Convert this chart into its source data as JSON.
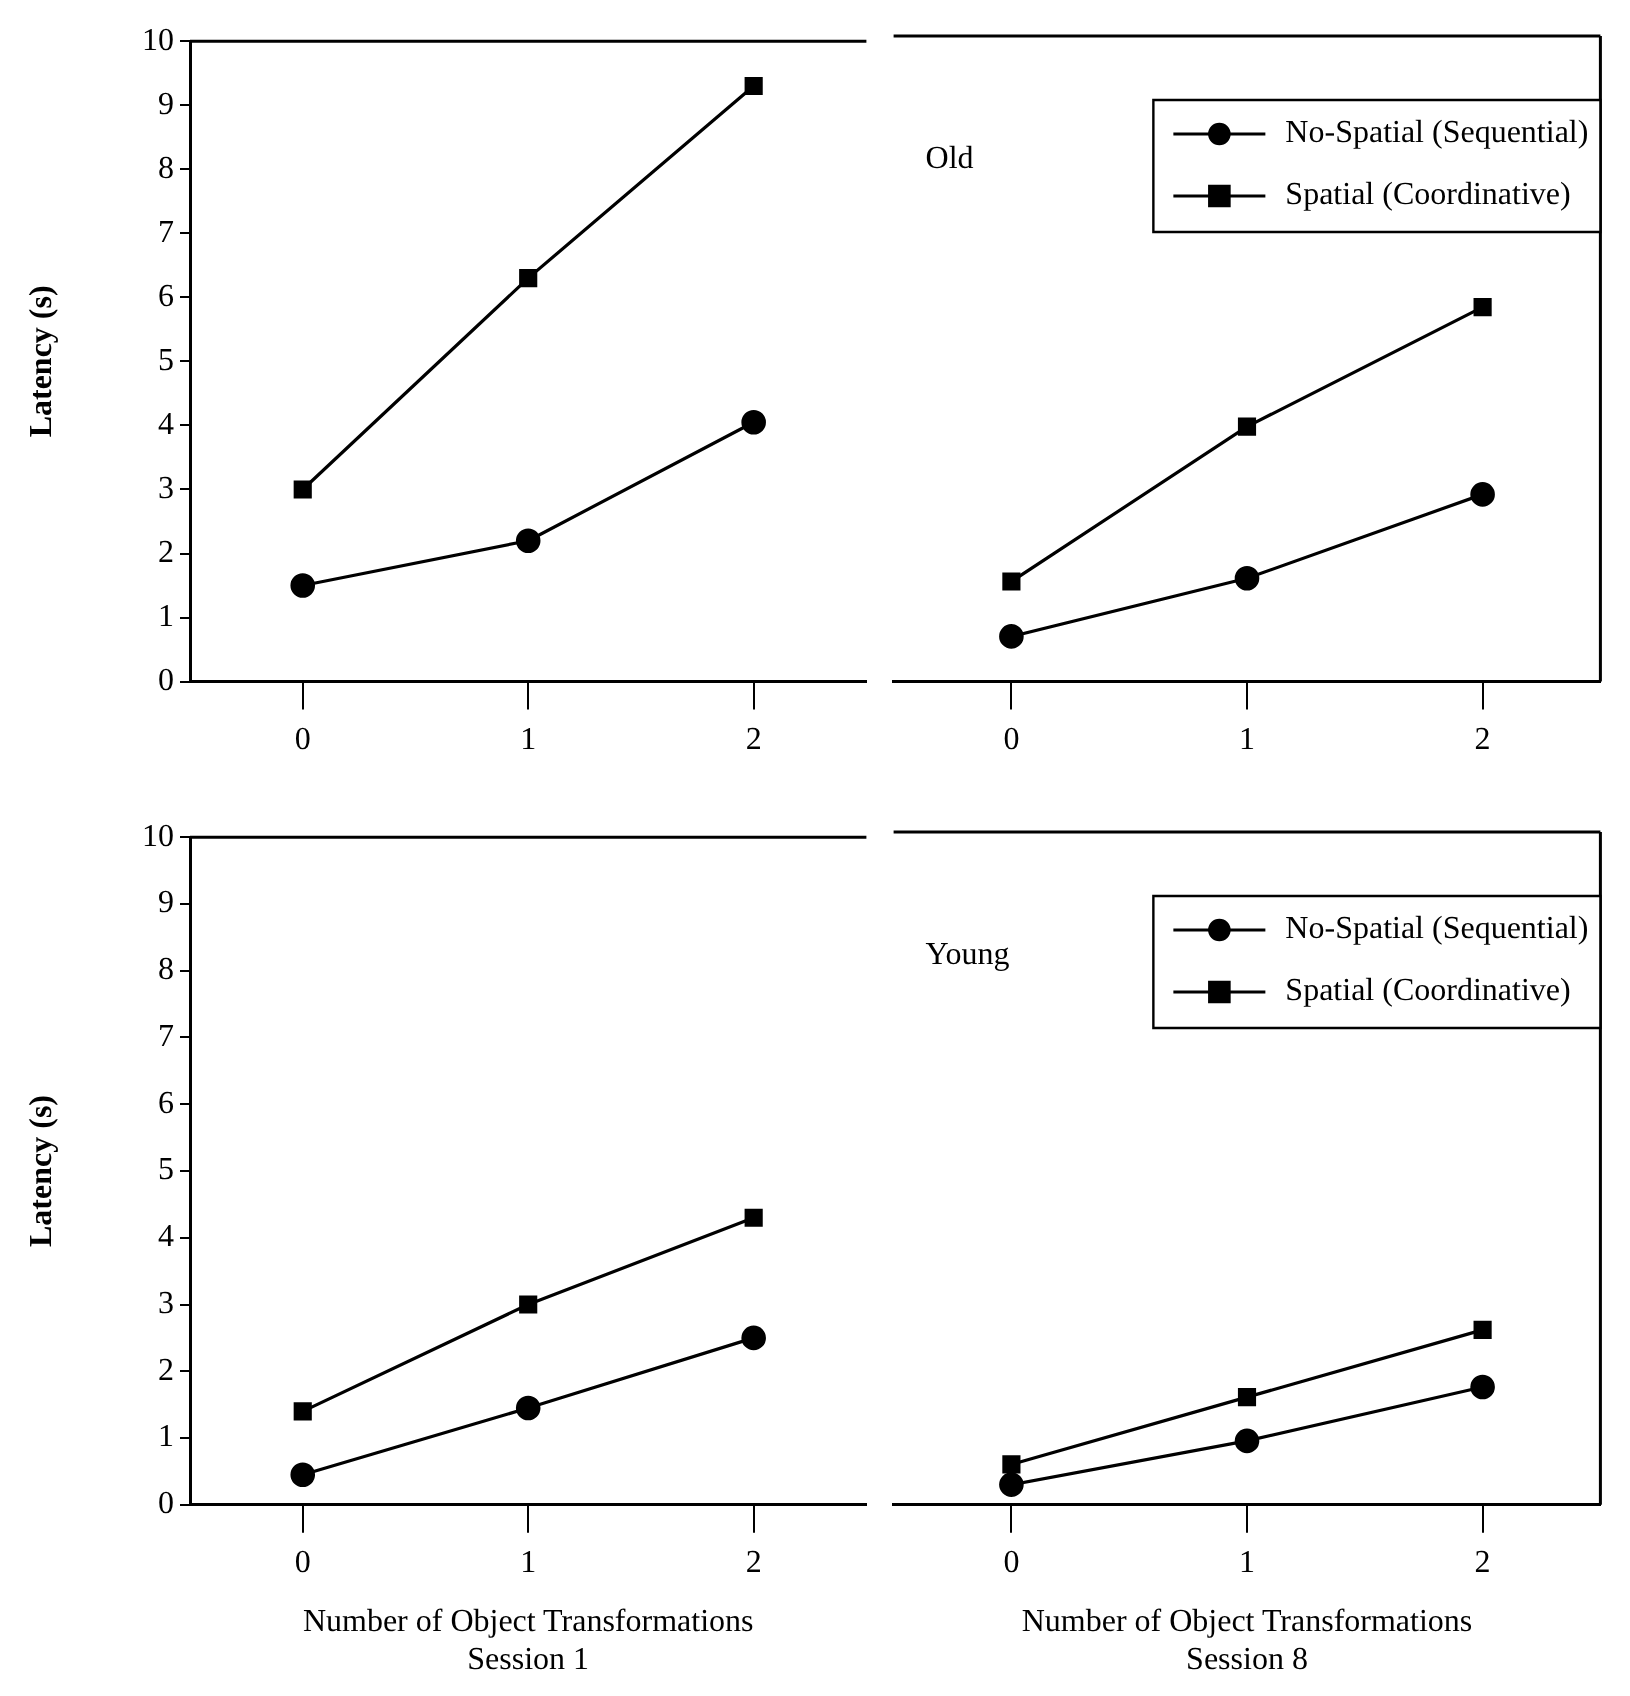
{
  "chart_data": [
    {
      "type": "line",
      "ylabel": "Latency (s)",
      "categories": [
        "0",
        "1",
        "2"
      ],
      "ylim": [
        0,
        10
      ],
      "yticks": [
        0,
        1,
        2,
        3,
        4,
        5,
        6,
        7,
        8,
        9,
        10
      ],
      "grid": false,
      "legend": false,
      "line_style": "solid",
      "series": [
        {
          "color": "#000000",
          "marker": "circle",
          "values": [
            1.5,
            2.2,
            4.05
          ]
        },
        {
          "color": "#000000",
          "marker": "square",
          "values": [
            3.0,
            6.3,
            9.3
          ]
        }
      ]
    },
    {
      "type": "line",
      "categories": [
        "0",
        "1",
        "2"
      ],
      "ylim": [
        0,
        10
      ],
      "yticks": [
        0,
        1,
        2,
        3,
        4,
        5,
        6,
        7,
        8,
        9,
        10
      ],
      "tick_labels": "x",
      "grid": false,
      "legend": "top right",
      "line_style": "solid",
      "annotations": [
        "Old"
      ],
      "series": [
        {
          "name": "No-Spatial (Sequential)",
          "color": "#000000",
          "marker": "circle",
          "values": [
            0.7,
            1.6,
            2.9
          ]
        },
        {
          "name": "Spatial (Coordinative)",
          "color": "#000000",
          "marker": "square",
          "values": [
            1.55,
            3.95,
            5.8
          ]
        }
      ]
    },
    {
      "type": "line",
      "ylabel": "Latency (s)",
      "xlabel": "Number of Object Transformations\nSession 1",
      "categories": [
        "0",
        "1",
        "2"
      ],
      "ylim": [
        0,
        10
      ],
      "yticks": [
        0,
        1,
        2,
        3,
        4,
        5,
        6,
        7,
        8,
        9,
        10
      ],
      "grid": false,
      "legend": false,
      "line_style": "solid",
      "series": [
        {
          "color": "#000000",
          "marker": "circle",
          "values": [
            0.45,
            1.45,
            2.5
          ]
        },
        {
          "color": "#000000",
          "marker": "square",
          "values": [
            1.4,
            3.0,
            4.3
          ]
        }
      ]
    },
    {
      "type": "line",
      "xlabel": "Number of Object Transformations\nSession 8",
      "categories": [
        "0",
        "1",
        "2"
      ],
      "ylim": [
        0,
        10
      ],
      "yticks": [
        0,
        1,
        2,
        3,
        4,
        5,
        6,
        7,
        8,
        9,
        10
      ],
      "tick_labels": "x",
      "grid": false,
      "legend": "top right",
      "line_style": "solid",
      "annotations": [
        "Young"
      ],
      "series": [
        {
          "name": "No-Spatial (Sequential)",
          "color": "#000000",
          "marker": "circle",
          "values": [
            0.3,
            0.95,
            1.75
          ]
        },
        {
          "name": "Spatial (Coordinative)",
          "color": "#000000",
          "marker": "square",
          "values": [
            0.6,
            1.6,
            2.6
          ]
        }
      ]
    }
  ]
}
